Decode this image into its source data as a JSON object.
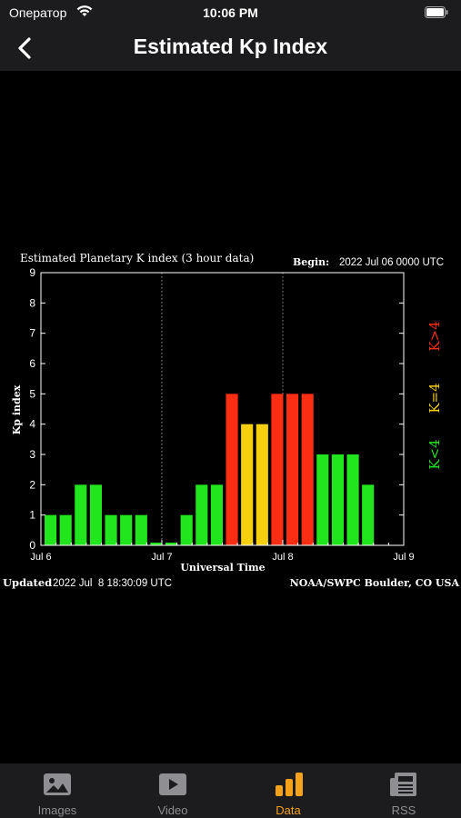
{
  "status_bar": {
    "carrier": "Оператор",
    "time": "10:06 PM"
  },
  "nav": {
    "title": "Estimated Kp Index",
    "back_icon": "chevron-left-icon"
  },
  "chart_data": {
    "type": "bar",
    "title": "Estimated Planetary K index (3 hour data)",
    "begin_label": "Begin:",
    "begin_value": "2022 Jul 06 0000 UTC",
    "ylabel": "Kp index",
    "xlabel": "Universal Time",
    "ylim": [
      0,
      9
    ],
    "yticks": [
      "0",
      "1",
      "2",
      "3",
      "4",
      "5",
      "6",
      "7",
      "8",
      "9"
    ],
    "xticks": [
      "Jul 6",
      "Jul 7",
      "Jul 8",
      "Jul 9"
    ],
    "values": [
      1,
      1,
      2,
      2,
      1,
      1,
      1,
      0,
      0,
      1,
      2,
      2,
      5,
      4,
      4,
      5,
      5,
      5,
      3,
      3,
      3,
      2
    ],
    "colors": {
      "low": "#22e61d",
      "mid": "#f6cf0e",
      "high": "#fb2d12"
    },
    "legend": [
      "K<4",
      "K=4",
      "K>4"
    ],
    "grid": true,
    "updated_label": "Updated",
    "updated_value": "2022 Jul  8 18:30:09 UTC",
    "source": "NOAA/SWPC Boulder, CO USA"
  },
  "tabs": [
    {
      "label": "Images",
      "icon": "image-icon",
      "active": false
    },
    {
      "label": "Video",
      "icon": "video-icon",
      "active": false
    },
    {
      "label": "Data",
      "icon": "bar-chart-icon",
      "active": true
    },
    {
      "label": "RSS",
      "icon": "news-icon",
      "active": false
    }
  ]
}
